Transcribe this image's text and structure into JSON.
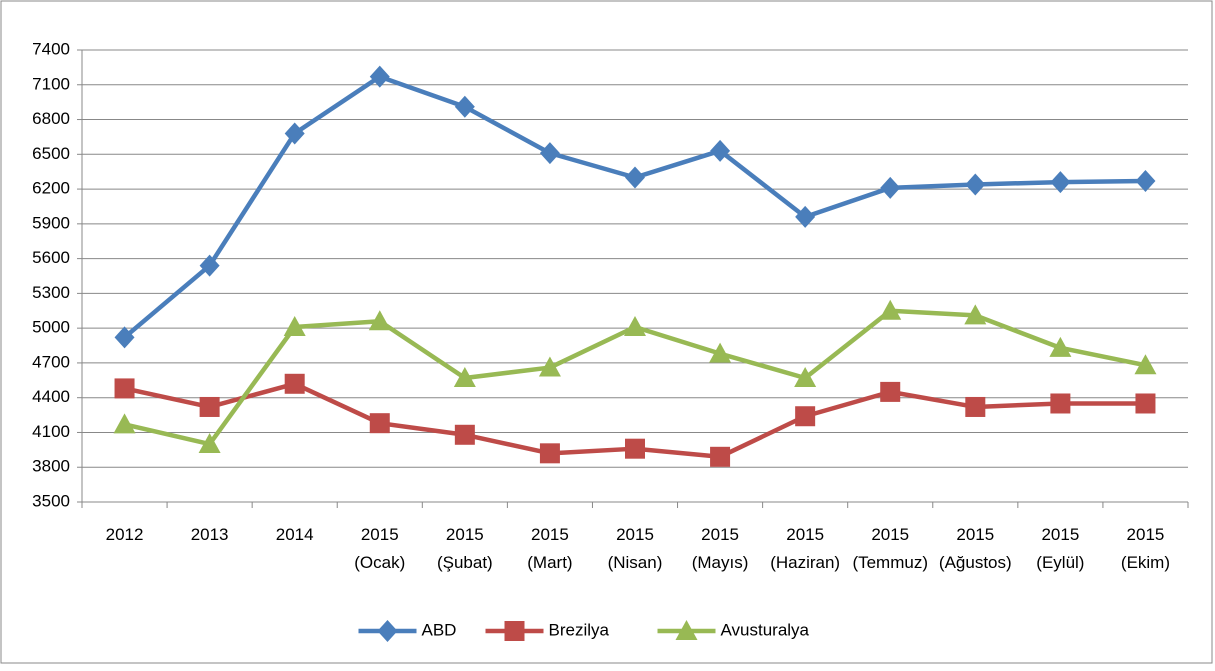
{
  "chart_data": {
    "type": "line",
    "categories": [
      [
        "2012"
      ],
      [
        "2013"
      ],
      [
        "2014"
      ],
      [
        "2015",
        "(Ocak)"
      ],
      [
        "2015",
        "(Şubat)"
      ],
      [
        "2015",
        "(Mart)"
      ],
      [
        "2015",
        "(Nisan)"
      ],
      [
        "2015",
        "(Mayıs)"
      ],
      [
        "2015",
        "(Haziran)"
      ],
      [
        "2015",
        "(Temmuz)"
      ],
      [
        "2015",
        "(Ağustos)"
      ],
      [
        "2015",
        "(Eylül)"
      ],
      [
        "2015",
        "(Ekim)"
      ]
    ],
    "series": [
      {
        "name": "ABD",
        "color": "#4a7ebb",
        "marker": "diamond",
        "values": [
          4920,
          5540,
          6680,
          7170,
          6910,
          6510,
          6300,
          6530,
          5960,
          6210,
          6240,
          6260,
          6270
        ]
      },
      {
        "name": "Brezilya",
        "color": "#be4b48",
        "marker": "square",
        "values": [
          4480,
          4320,
          4520,
          4180,
          4080,
          3920,
          3960,
          3890,
          4240,
          4450,
          4320,
          4350,
          4350
        ]
      },
      {
        "name": "Avusturalya",
        "color": "#98b954",
        "marker": "triangle",
        "values": [
          4170,
          4000,
          5010,
          5060,
          4570,
          4660,
          5010,
          4780,
          4570,
          5150,
          5110,
          4830,
          4680
        ]
      }
    ],
    "ylim": [
      3500,
      7400
    ],
    "yticks": [
      3500,
      3800,
      4100,
      4400,
      4700,
      5000,
      5300,
      5600,
      5900,
      6200,
      6500,
      6800,
      7100,
      7400
    ],
    "grid": true,
    "legend": "bottom"
  }
}
